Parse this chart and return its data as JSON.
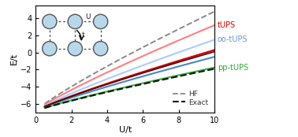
{
  "xlim": [
    0.5,
    10
  ],
  "ylim": [
    -7,
    5.5
  ],
  "xlabel": "U/t",
  "ylabel": "E/t",
  "xticks": [
    0,
    2,
    4,
    6,
    8,
    10
  ],
  "yticks": [
    -6,
    -4,
    -2,
    0,
    2,
    4
  ],
  "curve_colors": {
    "tUPS_light": "#ff8080",
    "tUPS_dark": "#cc0000",
    "oo_tUPS_light": "#aaccff",
    "oo_tUPS_dark": "#4488cc",
    "pp_tUPS": "#33bb33",
    "dark_maroon": "#550000",
    "HF": "#888888",
    "Exact": "#111111"
  },
  "legend_colors": {
    "tUPS": "#dd0000",
    "oo_tUPS": "#6699dd",
    "pp_tUPS": "#33aa33",
    "HF": "#666666",
    "Exact": "#111111"
  },
  "inset_circle_color": "#b8d8ea",
  "inset_circle_edge": "#555555",
  "endpoints": {
    "HF": 4.8,
    "tUPS_light": 3.2,
    "oo_tUPS_light": 1.5,
    "tUPS_dark": 0.3,
    "oo_tUPS_dark": -0.5,
    "dark_maroon": 0.1,
    "pp_tUPS": -1.75,
    "exact": -1.9
  },
  "E0": -6.85,
  "curvature": 0.87
}
